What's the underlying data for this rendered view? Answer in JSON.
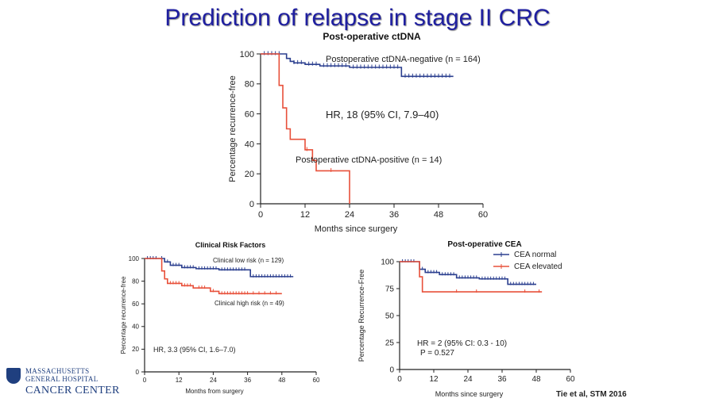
{
  "slide": {
    "title": "Prediction of relapse in stage II CRC",
    "citation": "Tie et al, STM 2016",
    "logo": {
      "line1": "MASSACHUSETTS",
      "line2": "GENERAL HOSPITAL",
      "line3": "CANCER CENTER"
    }
  },
  "colors": {
    "blue": "#2b3f8f",
    "red": "#e8503a",
    "axis": "#222222"
  },
  "chart_data": [
    {
      "id": "ctdna",
      "type": "line",
      "title": "Post-operative ctDNA",
      "xlabel": "Months since surgery",
      "ylabel": "Percentage recurrence-free",
      "xlim": [
        0,
        60
      ],
      "ylim": [
        0,
        100
      ],
      "xticks": [
        0,
        12,
        24,
        36,
        48,
        60
      ],
      "yticks": [
        0,
        20,
        40,
        60,
        80,
        100
      ],
      "annotation": "HR, 18 (95% CI, 7.9–40)",
      "series": [
        {
          "name": "Postoperative ctDNA-negative (n = 164)",
          "color": "#2b3f8f",
          "steps": [
            [
              0,
              100
            ],
            [
              6,
              100
            ],
            [
              7,
              97
            ],
            [
              8,
              95
            ],
            [
              9,
              94
            ],
            [
              12,
              93
            ],
            [
              16,
              92
            ],
            [
              24,
              91
            ],
            [
              38,
              90
            ],
            [
              38,
              85
            ],
            [
              52,
              85
            ]
          ],
          "censor": [
            1,
            2,
            3,
            4,
            5,
            9,
            10,
            11,
            13,
            14,
            15,
            17,
            18,
            19,
            20,
            21,
            22,
            23,
            25,
            26,
            27,
            28,
            29,
            30,
            31,
            32,
            33,
            34,
            35,
            36,
            37,
            39,
            40,
            41,
            42,
            43,
            44,
            45,
            46,
            47,
            48,
            49,
            50,
            51
          ]
        },
        {
          "name": "Postoperative ctDNA-positive (n = 14)",
          "color": "#e8503a",
          "steps": [
            [
              0,
              100
            ],
            [
              5,
              100
            ],
            [
              5,
              79
            ],
            [
              6,
              64
            ],
            [
              7,
              50
            ],
            [
              8,
              43
            ],
            [
              11,
              43
            ],
            [
              12,
              36
            ],
            [
              14,
              36
            ],
            [
              14,
              29
            ],
            [
              15,
              22
            ],
            [
              24,
              22
            ],
            [
              24,
              0
            ]
          ],
          "censor": [
            12.5,
            19
          ]
        }
      ]
    },
    {
      "id": "clinical",
      "type": "line",
      "title": "Clinical Risk Factors",
      "xlabel": "Months from surgery",
      "ylabel": "Percentage recurrence-free",
      "xlim": [
        0,
        60
      ],
      "ylim": [
        0,
        100
      ],
      "xticks": [
        0,
        12,
        24,
        36,
        48,
        60
      ],
      "yticks": [
        0,
        20,
        40,
        60,
        80,
        100
      ],
      "annotation": "HR, 3.3 (95% CI, 1.6–7.0)",
      "series": [
        {
          "name": "Clinical low risk (n = 129)",
          "color": "#2b3f8f",
          "steps": [
            [
              0,
              100
            ],
            [
              5,
              100
            ],
            [
              7,
              97
            ],
            [
              9,
              94
            ],
            [
              13,
              92
            ],
            [
              18,
              91
            ],
            [
              26,
              90
            ],
            [
              37,
              90
            ],
            [
              37,
              84
            ],
            [
              52,
              84
            ]
          ],
          "censor": [
            1,
            2,
            3,
            4,
            6,
            8,
            10,
            11,
            12,
            14,
            15,
            16,
            17,
            19,
            20,
            21,
            22,
            23,
            24,
            25,
            27,
            28,
            29,
            30,
            31,
            32,
            33,
            34,
            35,
            38,
            39,
            40,
            41,
            42,
            43,
            44,
            45,
            46,
            47,
            48,
            49,
            50,
            51
          ]
        },
        {
          "name": "Clinical high risk (n = 49)",
          "color": "#e8503a",
          "steps": [
            [
              0,
              100
            ],
            [
              4,
              100
            ],
            [
              6,
              89
            ],
            [
              7,
              82
            ],
            [
              8,
              78
            ],
            [
              13,
              76
            ],
            [
              17,
              74
            ],
            [
              23,
              71
            ],
            [
              26,
              69
            ],
            [
              48,
              69
            ]
          ],
          "censor": [
            9,
            10,
            11,
            12,
            14,
            15,
            16,
            19,
            20,
            21,
            24,
            27,
            28,
            29,
            30,
            31,
            32,
            33,
            34,
            35,
            36,
            38,
            40,
            42,
            44,
            46
          ]
        }
      ]
    },
    {
      "id": "cea",
      "type": "line",
      "title": "Post-operative CEA",
      "xlabel": "Months since surgery",
      "ylabel": "Percentage Recurrence-Free",
      "xlim": [
        0,
        60
      ],
      "ylim": [
        0,
        100
      ],
      "xticks": [
        0,
        12,
        24,
        36,
        48,
        60
      ],
      "yticks": [
        0,
        25,
        50,
        75,
        100
      ],
      "ytick_labels": [
        "0",
        "25",
        "50",
        "75",
        "100"
      ],
      "annotation": [
        "HR = 2 (95% CI: 0.3 - 10)",
        "P = 0.527"
      ],
      "legend": [
        "CEA normal",
        "CEA elevated"
      ],
      "series": [
        {
          "name": "CEA normal",
          "color": "#2b3f8f",
          "steps": [
            [
              0,
              100
            ],
            [
              6,
              100
            ],
            [
              7,
              93
            ],
            [
              9,
              90
            ],
            [
              14,
              88
            ],
            [
              20,
              85
            ],
            [
              28,
              84
            ],
            [
              38,
              84
            ],
            [
              38,
              79
            ],
            [
              48,
              79
            ]
          ],
          "censor": [
            1,
            2,
            3,
            4,
            5,
            8,
            10,
            11,
            12,
            13,
            15,
            16,
            17,
            18,
            19,
            21,
            22,
            23,
            24,
            25,
            26,
            27,
            29,
            30,
            31,
            32,
            33,
            34,
            35,
            36,
            37,
            39,
            40,
            41,
            42,
            43,
            44,
            45,
            46,
            47
          ]
        },
        {
          "name": "CEA elevated",
          "color": "#e8503a",
          "steps": [
            [
              0,
              100
            ],
            [
              7,
              100
            ],
            [
              7,
              86
            ],
            [
              8,
              86
            ],
            [
              8,
              72
            ],
            [
              50,
              72
            ]
          ],
          "censor": [
            20,
            27,
            44,
            49
          ]
        }
      ]
    }
  ]
}
